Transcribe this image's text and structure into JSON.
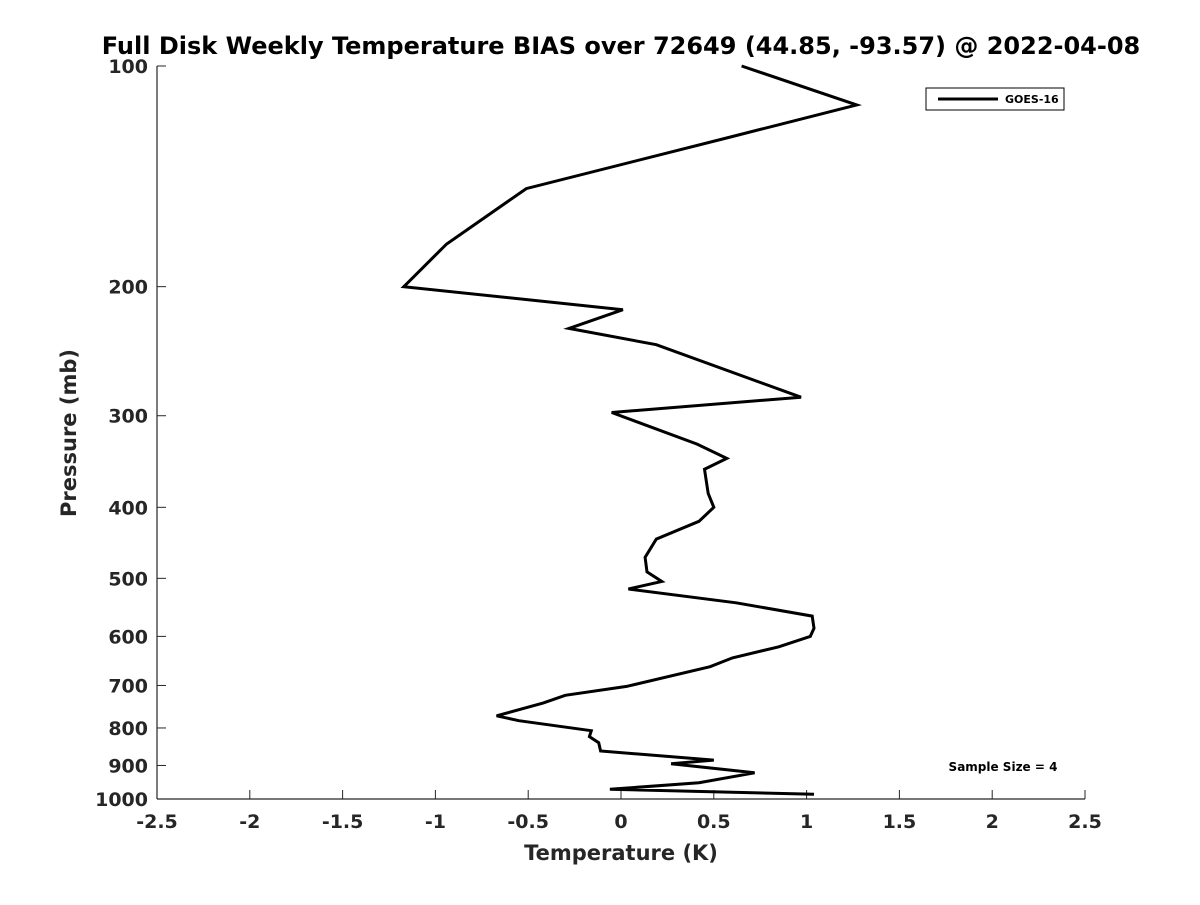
{
  "chart_data": {
    "type": "line",
    "title": "Full Disk Weekly Temperature BIAS over 72649 (44.85, -93.57) @ 2022-04-08",
    "xlabel": "Temperature (K)",
    "ylabel": "Pressure (mb)",
    "xlim": [
      -2.5,
      2.5
    ],
    "ylim": [
      100,
      1000
    ],
    "yscale": "log",
    "y_reversed": true,
    "x_ticks": [
      -2.5,
      -2,
      -1.5,
      -1,
      -0.5,
      0,
      0.5,
      1,
      1.5,
      2,
      2.5
    ],
    "x_tick_labels": [
      "-2.5",
      "-2",
      "-1.5",
      "-1",
      "-0.5",
      "0",
      "0.5",
      "1",
      "1.5",
      "2",
      "2.5"
    ],
    "y_ticks": [
      100,
      200,
      300,
      400,
      500,
      600,
      700,
      800,
      900,
      1000
    ],
    "y_tick_labels": [
      "100",
      "200",
      "300",
      "400",
      "500",
      "600",
      "700",
      "800",
      "900",
      "1000"
    ],
    "grid": false,
    "legend_position": "top-right",
    "series": [
      {
        "name": "GOES-16",
        "color": "#000000",
        "x": [
          0.65,
          1.27,
          0.59,
          -0.51,
          -0.94,
          -1.17,
          0.01,
          -0.28,
          0.19,
          0.97,
          -0.05,
          0.41,
          0.57,
          0.45,
          0.47,
          0.5,
          0.42,
          0.19,
          0.13,
          0.14,
          0.22,
          0.04,
          0.62,
          1.03,
          1.04,
          1.02,
          0.85,
          0.6,
          0.48,
          0.03,
          -0.3,
          -0.42,
          -0.67,
          -0.55,
          -0.16,
          -0.17,
          -0.12,
          -0.11,
          0.5,
          0.27,
          0.72,
          0.42,
          -0.06,
          1.04
        ],
        "y": [
          100,
          113,
          125,
          147,
          175,
          200,
          215,
          228,
          240,
          283,
          297,
          328,
          343,
          355,
          383,
          400,
          418,
          442,
          468,
          490,
          505,
          517,
          540,
          563,
          585,
          600,
          620,
          642,
          660,
          702,
          722,
          740,
          770,
          782,
          807,
          822,
          838,
          860,
          885,
          895,
          921,
          950,
          970,
          985
        ]
      }
    ],
    "annotations": [
      "Sample Size = 4"
    ]
  }
}
